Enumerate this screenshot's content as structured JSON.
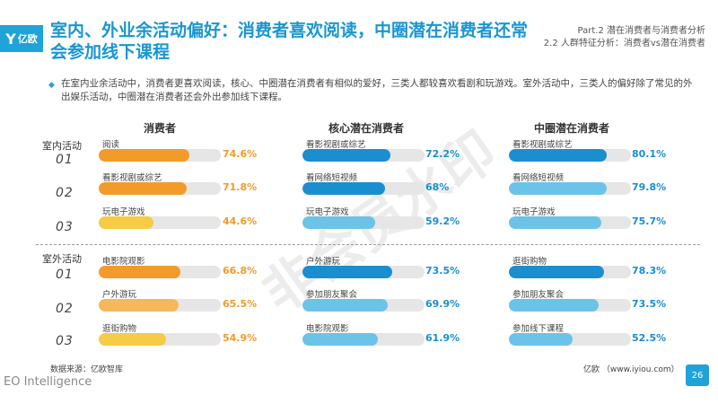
{
  "header": {
    "logo_text": "亿欧",
    "logo_mark": "Y",
    "title": "室内、外业余活动偏好：消费者喜欢阅读，中圈潜在消费者还常会参加线下课程",
    "part_line1": "Part.2 潜在消费者与消费者分析",
    "part_line2": "2.2 人群特征分析：消费者vs潜在消费者"
  },
  "summary": "在室内业余活动中，消费者更喜欢阅读，核心、中圈潜在消费者有相似的爱好，三类人都较喜欢看剧和玩游戏。室外活动中，三类人的偏好除了常见的外出娱乐活动，中圈潜在消费者还会外出参加线下课程。",
  "watermark": "非会员水印",
  "colors": {
    "orange": "#f29b2a",
    "dark_blue": "#1b8ed0",
    "light_blue": "#6cc3e8",
    "yellow": "#f6cb45",
    "orange_light": "#f6b85a",
    "track": "#e6e6e6"
  },
  "columns": [
    {
      "name": "消费者",
      "color": "#f29b2a"
    },
    {
      "name": "核心潜在消费者",
      "color": "#1b8ed0"
    },
    {
      "name": "中圈潜在消费者",
      "color": "#1b8ed0"
    }
  ],
  "sections": {
    "indoor": {
      "label": "室内活动"
    },
    "outdoor": {
      "label": "室外活动"
    }
  },
  "ranks": [
    "01",
    "02",
    "03"
  ],
  "chart_data": {
    "type": "bar",
    "groups": [
      {
        "section": "室内活动",
        "columns": [
          [
            {
              "label": "阅读",
              "value": 74.6
            },
            {
              "label": "看影视剧或综艺",
              "value": 71.8
            },
            {
              "label": "玩电子游戏",
              "value": 44.6
            }
          ],
          [
            {
              "label": "看影视剧或综艺",
              "value": 72.2
            },
            {
              "label": "看网络短视频",
              "value": 68.0
            },
            {
              "label": "玩电子游戏",
              "value": 59.2
            }
          ],
          [
            {
              "label": "看影视剧或综艺",
              "value": 80.1
            },
            {
              "label": "看网络短视频",
              "value": 79.8
            },
            {
              "label": "玩电子游戏",
              "value": 75.7
            }
          ]
        ]
      },
      {
        "section": "室外活动",
        "columns": [
          [
            {
              "label": "电影院观影",
              "value": 66.8
            },
            {
              "label": "户外游玩",
              "value": 65.5
            },
            {
              "label": "逛街购物",
              "value": 54.9
            }
          ],
          [
            {
              "label": "户外游玩",
              "value": 73.5
            },
            {
              "label": "参加朋友聚会",
              "value": 69.9
            },
            {
              "label": "电影院观影",
              "value": 61.9
            }
          ],
          [
            {
              "label": "逛街购物",
              "value": 78.3
            },
            {
              "label": "参加朋友聚会",
              "value": 73.5
            },
            {
              "label": "参加线下课程",
              "value": 52.5
            }
          ]
        ]
      }
    ],
    "value_texts": {
      "indoor": [
        [
          "74.6%",
          "71.8%",
          "44.6%"
        ],
        [
          "72.2%",
          "68%",
          "59.2%"
        ],
        [
          "80.1%",
          "79.8%",
          "75.7%"
        ]
      ],
      "outdoor": [
        [
          "66.8%",
          "65.5%",
          "54.9%"
        ],
        [
          "73.5%",
          "69.9%",
          "61.9%"
        ],
        [
          "78.3%",
          "73.5%",
          "52.5%"
        ]
      ]
    },
    "ylim": [
      0,
      100
    ]
  },
  "footer": {
    "source": "数据来源：亿欧智库",
    "brand": "亿欧 （www.iyiou.com）",
    "eo": "EO Intelligence",
    "page": "26"
  }
}
